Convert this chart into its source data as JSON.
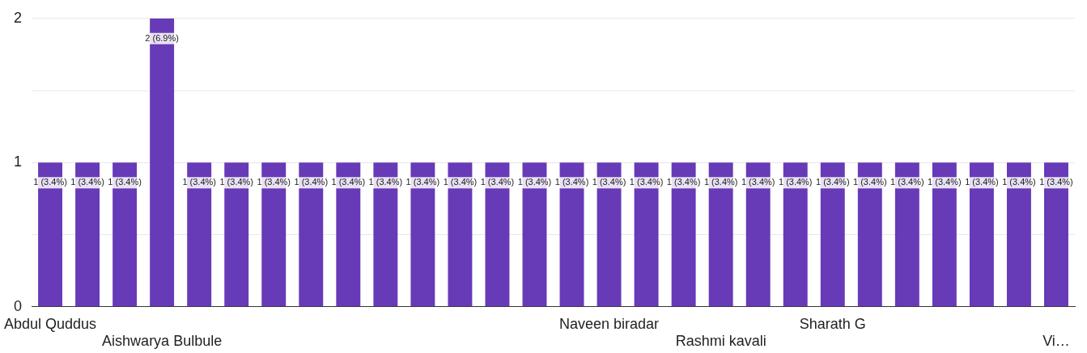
{
  "chart_data": {
    "type": "bar",
    "categories": [
      "Abdul Quddus",
      null,
      null,
      "Aishwarya Bulbule",
      null,
      null,
      null,
      null,
      null,
      null,
      null,
      null,
      null,
      null,
      null,
      "Naveen biradar",
      null,
      null,
      "Rashmi kavali",
      null,
      null,
      "Sharath G",
      null,
      null,
      null,
      null,
      null,
      "Vi…"
    ],
    "values": [
      1,
      1,
      1,
      2,
      1,
      1,
      1,
      1,
      1,
      1,
      1,
      1,
      1,
      1,
      1,
      1,
      1,
      1,
      1,
      1,
      1,
      1,
      1,
      1,
      1,
      1,
      1,
      1
    ],
    "value_labels": [
      "1 (3.4%)",
      "1 (3.4%)",
      "1 (3.4%)",
      "2 (6.9%)",
      "1 (3.4%)",
      "1 (3.4%)",
      "1 (3.4%)",
      "1 (3.4%)",
      "1 (3.4%)",
      "1 (3.4%)",
      "1 (3.4%)",
      "1 (3.4%)",
      "1 (3.4%)",
      "1 (3.4%)",
      "1 (3.4%)",
      "1 (3.4%)",
      "1 (3.4%)",
      "1 (3.4%)",
      "1 (3.4%)",
      "1 (3.4%)",
      "1 (3.4%)",
      "1 (3.4%)",
      "1 (3.4%)",
      "1 (3.4%)",
      "1 (3.4%)",
      "1 (3.4%)",
      "1 (3.4%)",
      "1 (3.4%)"
    ],
    "color": "#673ab7",
    "ylim": [
      0,
      2
    ],
    "yticks": [
      0,
      {
        "value": 0.5,
        "label": null
      },
      1,
      {
        "value": 1.5,
        "label": null
      },
      2
    ],
    "grid": "y",
    "legend": false
  }
}
